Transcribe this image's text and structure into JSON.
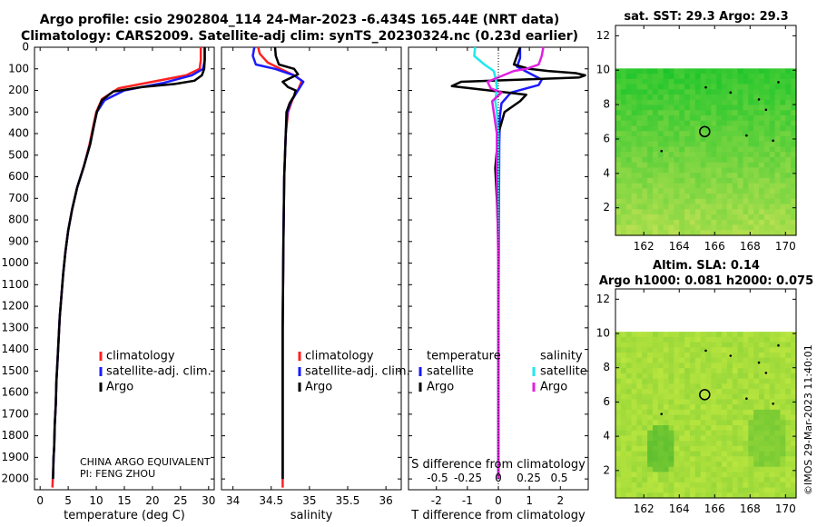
{
  "title_line1": "Argo profile: csio 2902804_114 24-Mar-2023 -6.434S 165.44E (NRT data)",
  "title_line2": "Climatology: CARS2009. Satellite-adj clim: synTS_20230324.nc (0.23d earlier)",
  "side_stamp": "©IMOS 29-Mar-2023 11:40:01",
  "colors": {
    "climatology": "#ff2020",
    "satellite": "#1a1aff",
    "argo": "#000000",
    "sal_sat": "#20e8f0",
    "sal_argo": "#e020e0"
  },
  "chart_data": [
    {
      "type": "line",
      "id": "temperature",
      "xlabel": "temperature (deg C)",
      "ylabel": "",
      "xlim": [
        -1,
        31
      ],
      "ylim": [
        2050,
        0
      ],
      "x_ticks": [
        0,
        5,
        10,
        15,
        20,
        25,
        30
      ],
      "x_tick_labels": [
        "0",
        "5",
        "10",
        "15",
        "20",
        "25",
        "30"
      ],
      "y_ticks": [
        0,
        100,
        200,
        300,
        400,
        500,
        600,
        700,
        800,
        900,
        1000,
        1100,
        1200,
        1300,
        1400,
        1500,
        1600,
        1700,
        1800,
        1900,
        2000
      ],
      "y_tick_labels": [
        "0",
        "100",
        "200",
        "300",
        "400",
        "500",
        "600",
        "700",
        "800",
        "900",
        "1000",
        "1100",
        "1200",
        "1300",
        "1400",
        "1500",
        "1600",
        "1700",
        "1800",
        "1900",
        "2000"
      ],
      "legend": [
        "climatology",
        "satellite-adj. clim.",
        "Argo"
      ],
      "annotation": [
        "CHINA ARGO EQUIVALENT",
        "PI: FENG ZHOU"
      ],
      "series": [
        {
          "name": "climatology",
          "color": "#ff2020",
          "x": [
            28.6,
            28.6,
            28.4,
            26,
            20,
            14,
            11,
            10,
            9.5,
            8.8,
            7.8,
            6.6,
            5.7,
            5.0,
            4.5,
            4.1,
            3.8,
            3.5,
            3.3,
            3.1,
            2.9,
            2.8,
            2.6,
            2.5,
            2.4,
            2.35,
            2.3,
            2.25,
            2.2
          ],
          "y": [
            0,
            60,
            100,
            130,
            160,
            190,
            240,
            300,
            360,
            450,
            550,
            650,
            750,
            850,
            950,
            1050,
            1150,
            1250,
            1350,
            1450,
            1550,
            1650,
            1750,
            1850,
            1900,
            1950,
            1980,
            2000,
            2040
          ]
        },
        {
          "name": "satellite-adj. clim.",
          "color": "#1a1aff",
          "x": [
            29.3,
            29.3,
            29.0,
            27,
            22,
            15,
            11.5,
            10.1,
            9.6,
            8.9,
            7.8,
            6.6,
            5.7,
            5.0,
            4.5,
            4.1,
            3.8,
            3.5,
            3.3,
            3.1,
            2.9,
            2.8,
            2.6,
            2.5,
            2.4,
            2.35,
            2.3
          ],
          "y": [
            0,
            60,
            100,
            130,
            165,
            200,
            245,
            300,
            360,
            450,
            550,
            650,
            750,
            850,
            950,
            1050,
            1150,
            1250,
            1350,
            1450,
            1550,
            1650,
            1750,
            1850,
            1900,
            1950,
            2000
          ]
        },
        {
          "name": "Argo",
          "color": "#000000",
          "x": [
            29.3,
            29.3,
            29.2,
            28.8,
            27.5,
            24,
            18,
            13,
            11,
            10.1,
            9.6,
            8.9,
            7.8,
            6.6,
            5.7,
            5.0,
            4.5,
            4.1,
            3.8,
            3.5,
            3.3,
            3.1,
            2.9,
            2.8,
            2.6,
            2.5,
            2.4,
            2.35,
            2.3
          ],
          "y": [
            0,
            60,
            100,
            130,
            155,
            170,
            185,
            205,
            245,
            300,
            360,
            450,
            550,
            650,
            750,
            850,
            950,
            1050,
            1150,
            1250,
            1350,
            1450,
            1550,
            1650,
            1750,
            1850,
            1900,
            1950,
            2000
          ]
        }
      ]
    },
    {
      "type": "line",
      "id": "salinity",
      "xlabel": "salinity",
      "xlim": [
        33.85,
        36.2
      ],
      "ylim": [
        2050,
        0
      ],
      "x_ticks": [
        34,
        34.5,
        35,
        35.5,
        36
      ],
      "x_tick_labels": [
        "34",
        "34.5",
        "35",
        "35.5",
        "36"
      ],
      "legend": [
        "climatology",
        "satellite-adj. clim.",
        "Argo"
      ],
      "series": [
        {
          "name": "climatology",
          "color": "#ff2020",
          "x": [
            34.33,
            34.35,
            34.45,
            34.62,
            34.8,
            34.9,
            34.86,
            34.78,
            34.72,
            34.69,
            34.67,
            34.66,
            34.65,
            34.65,
            34.65
          ],
          "y": [
            0,
            30,
            70,
            100,
            130,
            155,
            190,
            240,
            300,
            400,
            600,
            900,
            1300,
            1700,
            2040
          ]
        },
        {
          "name": "satellite-adj. clim.",
          "color": "#1a1aff",
          "x": [
            34.28,
            34.26,
            34.3,
            34.55,
            34.8,
            34.92,
            34.85,
            34.76,
            34.71,
            34.69,
            34.67,
            34.66,
            34.65,
            34.65,
            34.65
          ],
          "y": [
            0,
            40,
            80,
            100,
            130,
            160,
            200,
            250,
            300,
            400,
            600,
            900,
            1300,
            1700,
            2000
          ]
        },
        {
          "name": "Argo",
          "color": "#000000",
          "x": [
            34.55,
            34.56,
            34.6,
            34.8,
            34.85,
            34.65,
            34.72,
            34.82,
            34.8,
            34.74,
            34.7,
            34.69,
            34.67,
            34.66,
            34.65,
            34.65,
            34.65
          ],
          "y": [
            0,
            40,
            80,
            100,
            125,
            160,
            185,
            200,
            225,
            260,
            300,
            400,
            600,
            900,
            1300,
            1700,
            2000
          ]
        }
      ]
    },
    {
      "type": "line",
      "id": "difference",
      "xlabel": "T difference from climatology",
      "xlim": [
        -2.9,
        2.9
      ],
      "ylim": [
        2050,
        0
      ],
      "x_ticks": [
        -2,
        -1,
        0,
        1,
        2
      ],
      "x_tick_labels": [
        "-2",
        "-1",
        "0",
        "1",
        "2"
      ],
      "top_axis_title": "S difference from climatology",
      "top_ticks": [
        -0.5,
        -0.25,
        0,
        0.25,
        0.5
      ],
      "top_tick_labels": [
        "-0.5",
        "-0.25",
        "0",
        "0.25",
        "0.5"
      ],
      "legend_left_title": "temperature",
      "legend_left": [
        "satellite",
        "Argo"
      ],
      "legend_right_title": "salinity",
      "legend_right": [
        "satellite",
        "Argo"
      ],
      "series": [
        {
          "name": "T satellite",
          "color": "#1a1aff",
          "x": [
            0.7,
            0.7,
            0.6,
            1.0,
            1.4,
            1.3,
            0.4,
            0.1,
            0.05,
            0.03,
            0.02,
            0.01,
            0.0,
            0.0
          ],
          "y": [
            0,
            50,
            90,
            120,
            150,
            175,
            210,
            260,
            320,
            450,
            700,
            1100,
            1600,
            2000
          ]
        },
        {
          "name": "T Argo",
          "color": "#000000",
          "x": [
            0.7,
            0.6,
            0.5,
            1.0,
            1.6,
            2.5,
            2.8,
            2.6,
            -1.2,
            -1.5,
            -0.3,
            0.9,
            0.7,
            0.2,
            0.1,
            0.0,
            -0.1,
            -0.05,
            0.0,
            0.0,
            0.0
          ],
          "y": [
            0,
            40,
            80,
            100,
            110,
            120,
            130,
            140,
            160,
            180,
            200,
            220,
            250,
            300,
            350,
            400,
            560,
            700,
            900,
            1400,
            2000
          ]
        },
        {
          "name": "S satellite",
          "color": "#20e8f0",
          "x": [
            -0.75,
            -0.78,
            -0.45,
            -0.15,
            -0.08,
            -0.05,
            -0.1,
            -0.05,
            0.0,
            0.0,
            0.0,
            0.0,
            0.0
          ],
          "y": [
            0,
            40,
            80,
            110,
            150,
            190,
            250,
            300,
            400,
            700,
            1100,
            1600,
            2000
          ]
        },
        {
          "name": "S Argo",
          "color": "#e020e0",
          "x": [
            1.45,
            1.4,
            1.3,
            0.9,
            0.5,
            -0.35,
            -0.25,
            0.1,
            -0.2,
            -0.15,
            -0.1,
            -0.05,
            -0.05,
            0.0,
            0.0,
            0.0
          ],
          "y": [
            0,
            40,
            80,
            100,
            110,
            160,
            190,
            210,
            250,
            300,
            350,
            400,
            600,
            1000,
            1600,
            2000
          ]
        }
      ]
    },
    {
      "type": "heatmap",
      "id": "sst_map",
      "title": "sat. SST: 29.3 Argo: 29.3",
      "xlim": [
        160.4,
        170.6
      ],
      "ylim": [
        0.4,
        12.6
      ],
      "x_ticks": [
        162,
        164,
        166,
        168,
        170
      ],
      "x_tick_labels": [
        "162",
        "164",
        "166",
        "168",
        "170"
      ],
      "y_ticks": [
        2,
        4,
        6,
        8,
        10,
        12
      ],
      "y_tick_labels": [
        "2",
        "4",
        "6",
        "8",
        "10",
        "12"
      ],
      "data_top_lat": 10.1,
      "float_position": [
        165.44,
        6.43
      ],
      "color_top": "#30c830",
      "color_bottom": "#b8e050"
    },
    {
      "type": "heatmap",
      "id": "sla_map",
      "title_line1": "Altim. SLA: 0.14",
      "title_line2": "Argo h1000: 0.081 h2000: 0.075",
      "xlim": [
        160.4,
        170.6
      ],
      "ylim": [
        0.4,
        12.6
      ],
      "x_ticks": [
        162,
        164,
        166,
        168,
        170
      ],
      "x_tick_labels": [
        "162",
        "164",
        "166",
        "168",
        "170"
      ],
      "y_ticks": [
        2,
        4,
        6,
        8,
        10,
        12
      ],
      "y_tick_labels": [
        "2",
        "4",
        "6",
        "8",
        "10",
        "12"
      ],
      "data_top_lat": 10.1,
      "float_position": [
        165.44,
        6.43
      ],
      "color_base": "#c0e840",
      "color_dark": "#60c030"
    }
  ]
}
